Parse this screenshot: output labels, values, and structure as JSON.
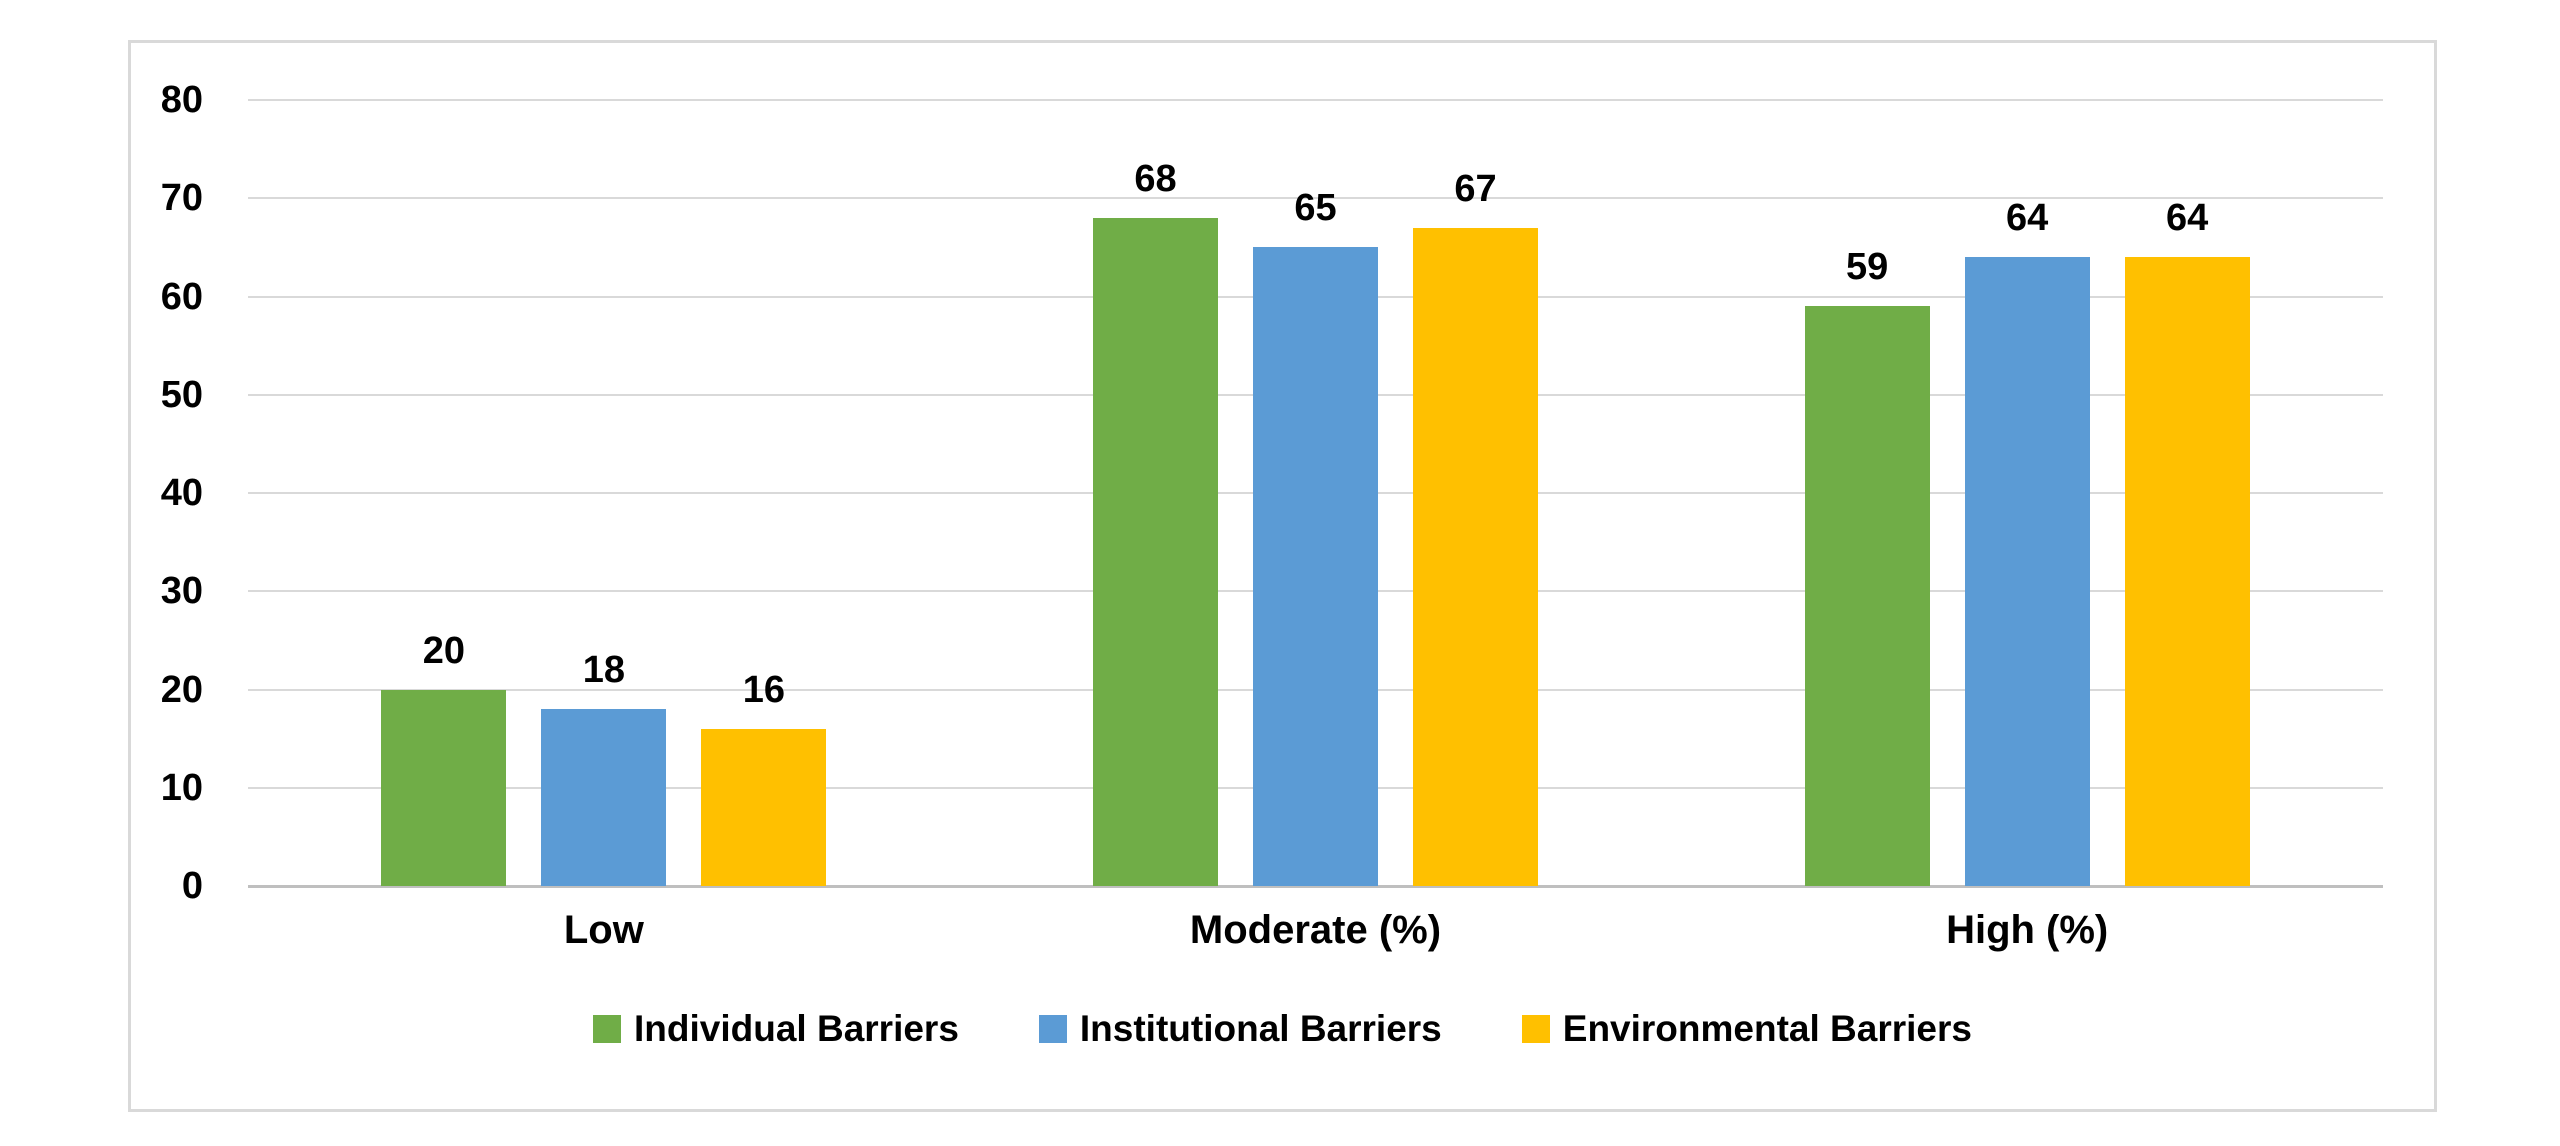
{
  "chart_data": {
    "type": "bar",
    "title": "",
    "xlabel": "",
    "ylabel": "",
    "categories": [
      "Low",
      "Moderate (%)",
      "High (%)"
    ],
    "series": [
      {
        "name": "Individual Barriers",
        "color": "#70AD47",
        "values": [
          20,
          68,
          59
        ]
      },
      {
        "name": "Institutional Barriers",
        "color": "#5B9BD5",
        "values": [
          18,
          65,
          64
        ]
      },
      {
        "name": "Environmental Barriers",
        "color": "#FFC000",
        "values": [
          16,
          67,
          64
        ]
      }
    ],
    "ylim": [
      0,
      80
    ],
    "yticks": [
      0,
      10,
      20,
      30,
      40,
      50,
      60,
      70,
      80
    ],
    "grid": true,
    "gridline_color": "#D9D9D9",
    "axis_line_color": "#BFBFBF",
    "legend_position": "bottom",
    "data_labels": true
  }
}
